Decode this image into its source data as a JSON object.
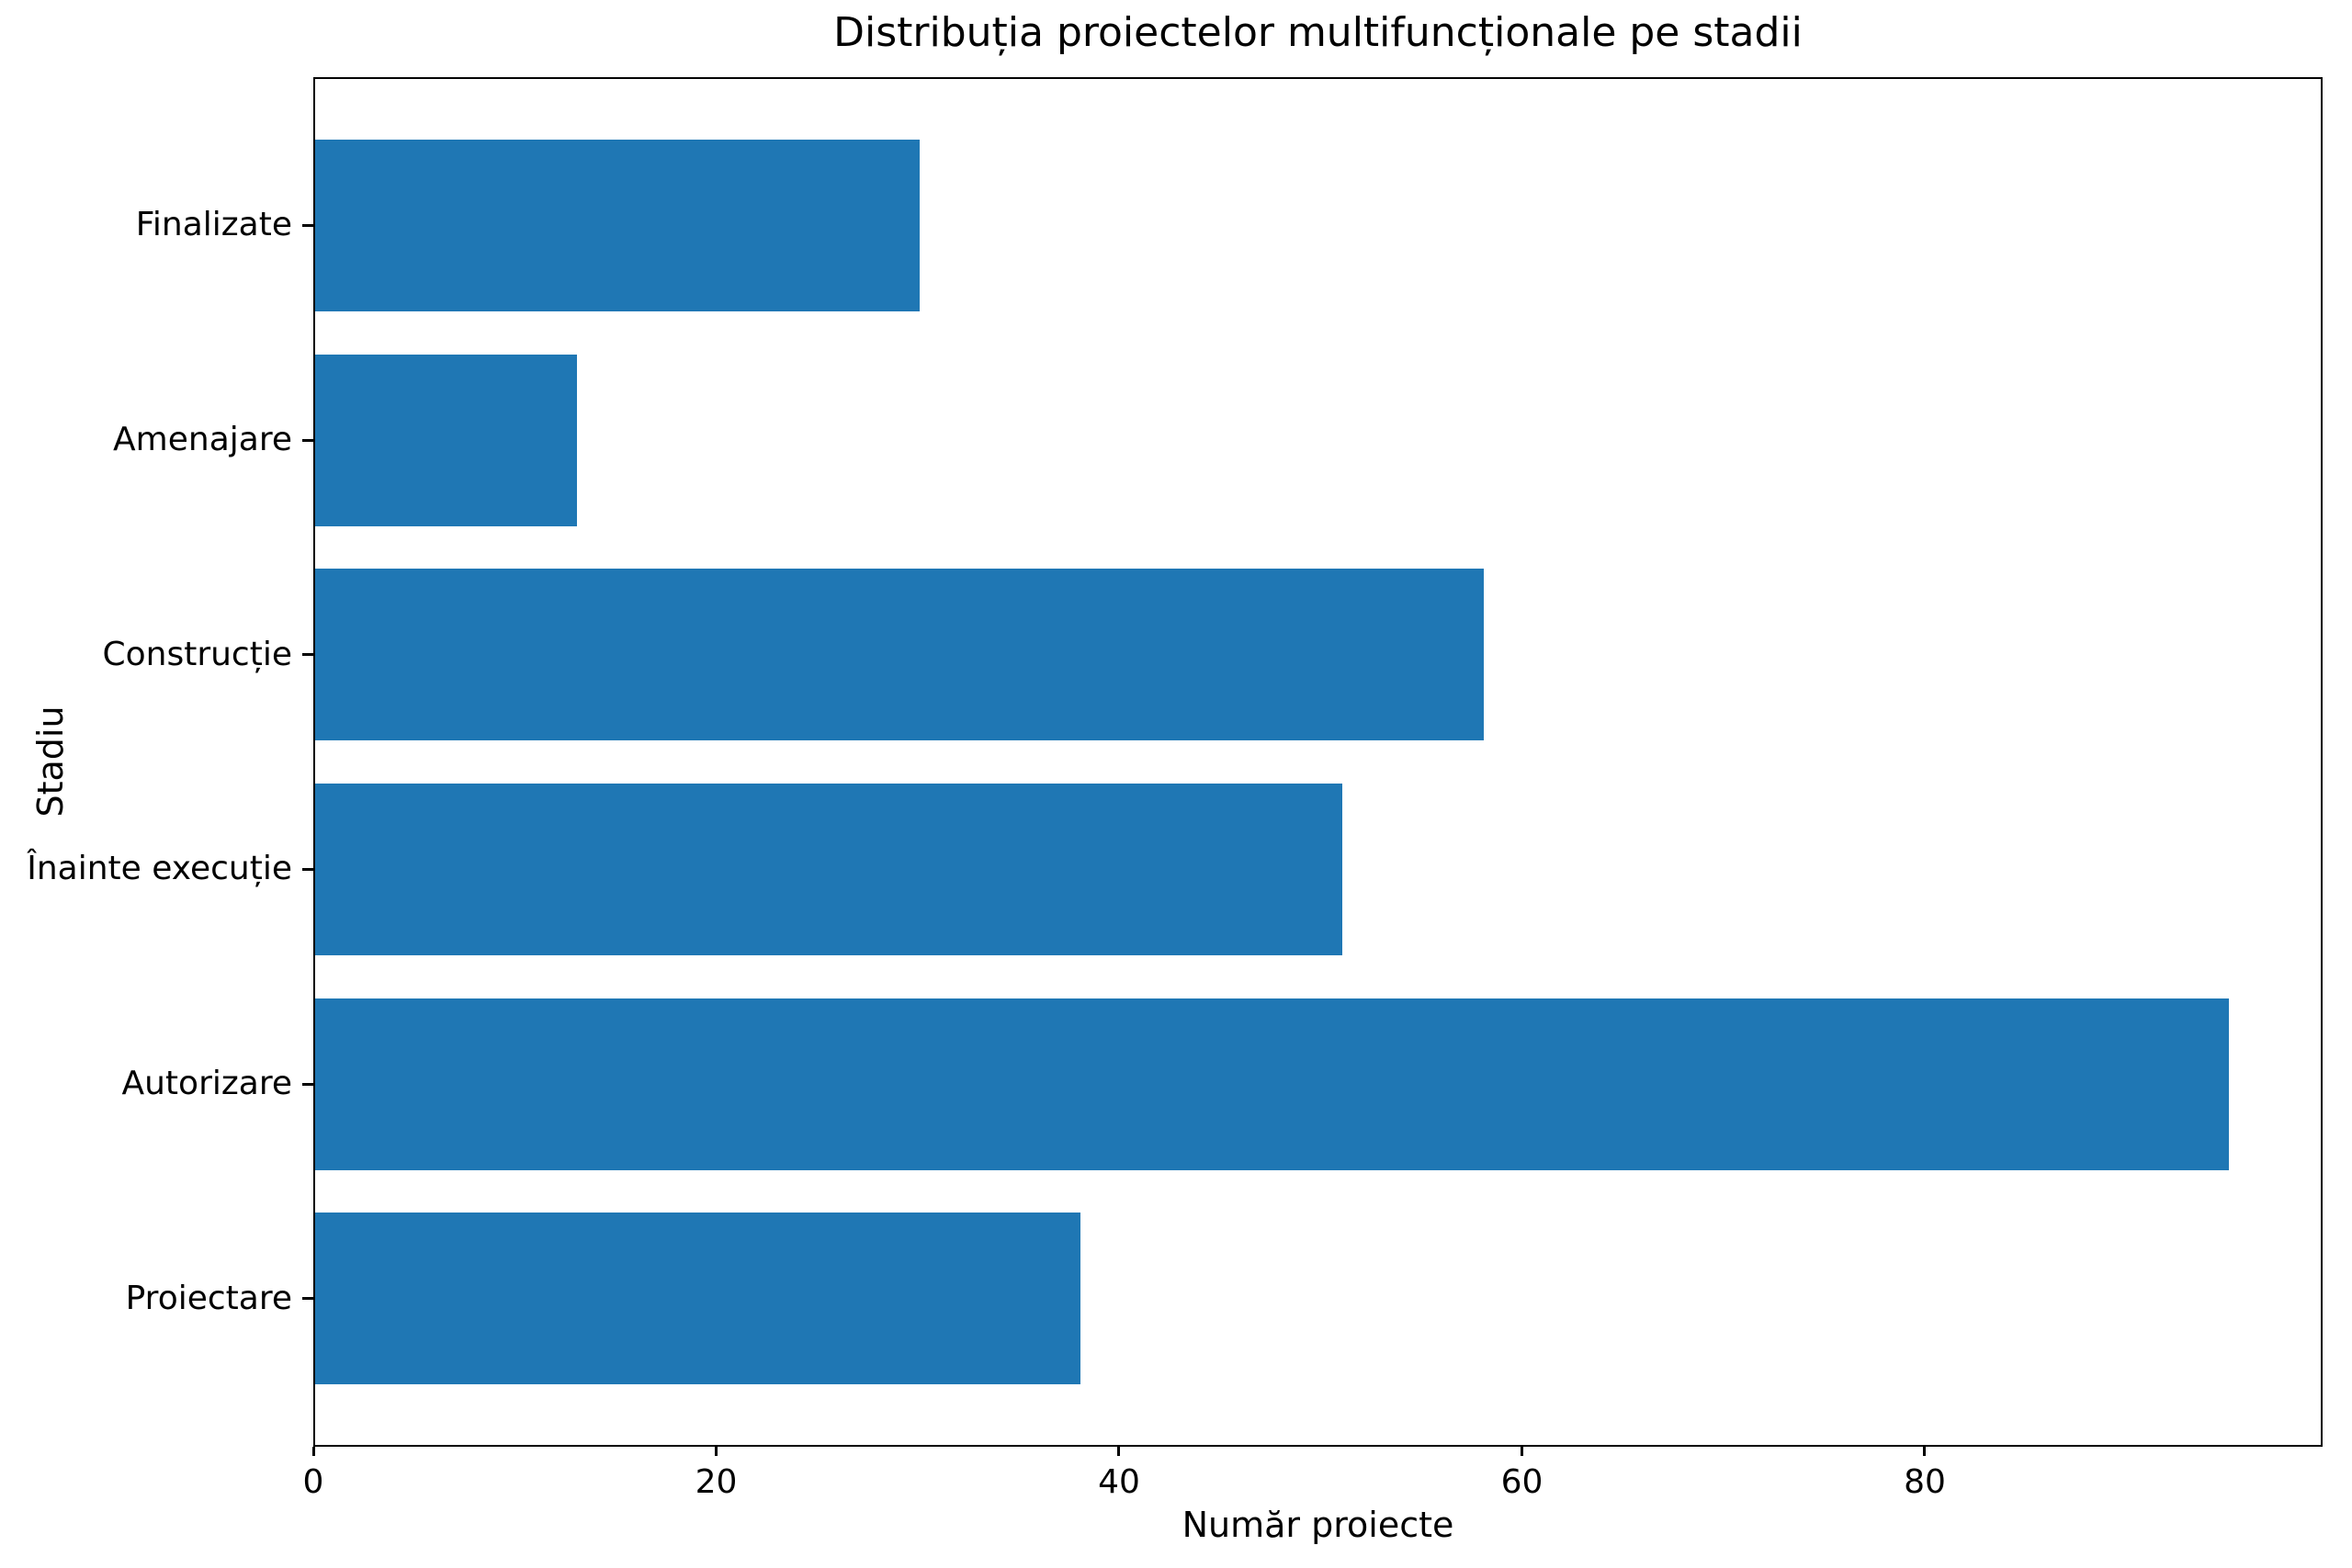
{
  "chart_data": {
    "type": "bar",
    "orientation": "horizontal",
    "order": "top-to-bottom",
    "title": "Distribuția proiectelor multifuncționale pe stadii",
    "xlabel": "Număr proiecte",
    "ylabel": "Stadiu",
    "categories": [
      "Finalizate",
      "Amenajare",
      "Construcție",
      "Înainte execuție",
      "Autorizare",
      "Proiectare"
    ],
    "values": [
      30,
      13,
      58,
      51,
      95,
      38
    ],
    "xticks": [
      0,
      20,
      40,
      60,
      80
    ],
    "xlim": [
      0,
      99.75
    ],
    "grid": false,
    "legend": null,
    "bar_color": "#1f77b4",
    "text_color": "#000000",
    "background_color": "#ffffff"
  }
}
